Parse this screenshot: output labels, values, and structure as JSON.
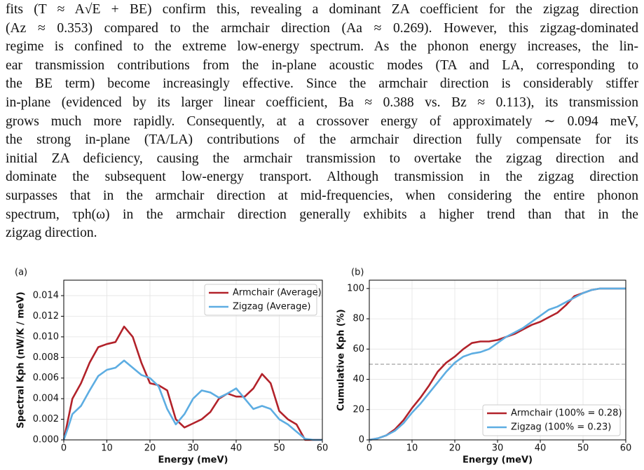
{
  "text": {
    "lines": [
      "fits (T ≈ A√E + BE) confirm this, revealing a dominant ZA coefficient for the zigzag direction",
      "(Az ≈ 0.353) compared to the armchair direction (Aa ≈ 0.269). However, this zigzag-dominated",
      "regime is confined to the extreme low-energy spectrum. As the phonon energy increases, the lin-",
      "ear transmission contributions from the in-plane acoustic modes (TA and LA, corresponding to",
      "the BE term) become increasingly effective. Since the armchair direction is considerably stiffer",
      "in-plane (evidenced by its larger linear coefficient, Ba ≈ 0.388 vs. Bz ≈ 0.113), its transmission",
      "grows much more rapidly. Consequently, at a crossover energy of approximately ∼ 0.094 meV,",
      "the strong in-plane (TA/LA) contributions of the armchair direction fully compensate for its",
      "initial ZA deficiency, causing the armchair transmission to overtake the zigzag direction and",
      "dominate the subsequent low-energy transport. Although transmission in the zigzag direction",
      "surpasses that in the armchair direction at mid-frequencies, when considering the entire phonon",
      "spectrum, τph(ω) in the armchair direction generally exhibits a higher trend than that in the",
      "zigzag direction."
    ]
  },
  "chart_data": [
    {
      "type": "line",
      "panel": "(a)",
      "xlabel": "Energy (meV)",
      "ylabel": "Spectral Kph (nW/K / meV)",
      "x": [
        0,
        1,
        2,
        4,
        6,
        8,
        10,
        12,
        14,
        16,
        18,
        20,
        22,
        24,
        26,
        28,
        30,
        32,
        34,
        36,
        38,
        40,
        42,
        44,
        46,
        48,
        50,
        52,
        54,
        56,
        58,
        60
      ],
      "series": [
        {
          "name": "Armchair (Average)",
          "color": "#b2222a",
          "values": [
            0,
            0.002,
            0.004,
            0.0055,
            0.0075,
            0.009,
            0.0093,
            0.0095,
            0.011,
            0.01,
            0.0075,
            0.0055,
            0.0053,
            0.0048,
            0.002,
            0.0012,
            0.0016,
            0.002,
            0.0027,
            0.004,
            0.0045,
            0.0042,
            0.0042,
            0.005,
            0.0064,
            0.0055,
            0.0028,
            0.002,
            0.0015,
            0,
            0,
            0
          ]
        },
        {
          "name": "Zigzag (Average)",
          "color": "#5dade2",
          "values": [
            0,
            0.0012,
            0.0025,
            0.0033,
            0.0048,
            0.0062,
            0.0068,
            0.007,
            0.0077,
            0.007,
            0.0063,
            0.006,
            0.0052,
            0.003,
            0.0015,
            0.0025,
            0.004,
            0.0048,
            0.0046,
            0.0041,
            0.0045,
            0.005,
            0.004,
            0.003,
            0.0033,
            0.003,
            0.002,
            0.0015,
            0.0008,
            0.0001,
            0,
            0
          ]
        }
      ],
      "xlim": [
        0,
        60
      ],
      "xticks": [
        0,
        10,
        20,
        30,
        40,
        50,
        60
      ],
      "ylim": [
        0,
        0.0155
      ],
      "yticks": [
        {
          "value": 0,
          "label": "0.000"
        },
        {
          "value": 0.002,
          "label": "0.002"
        },
        {
          "value": 0.004,
          "label": "0.004"
        },
        {
          "value": 0.006,
          "label": "0.006"
        },
        {
          "value": 0.008,
          "label": "0.008"
        },
        {
          "value": 0.01,
          "label": "0.010"
        },
        {
          "value": 0.012,
          "label": "0.012"
        },
        {
          "value": 0.014,
          "label": "0.014"
        }
      ],
      "grid": true,
      "legend": "upper-right"
    },
    {
      "type": "line",
      "panel": "(b)",
      "xlabel": "Energy (meV)",
      "ylabel": "Cumulative Kph (%)",
      "x": [
        0,
        2,
        4,
        6,
        8,
        10,
        12,
        14,
        16,
        18,
        20,
        22,
        24,
        26,
        28,
        30,
        32,
        34,
        36,
        38,
        40,
        42,
        44,
        46,
        48,
        50,
        52,
        54,
        56,
        58,
        60
      ],
      "series": [
        {
          "name": "Armchair (100% = 0.28)",
          "color": "#b2222a",
          "values": [
            0,
            1,
            3,
            7,
            13,
            21,
            28,
            36,
            45,
            51,
            55,
            60,
            64,
            65,
            65,
            66,
            68,
            70,
            73,
            76,
            78,
            81,
            84,
            89,
            95,
            97,
            99,
            100,
            100,
            100,
            100
          ]
        },
        {
          "name": "Zigzag (100% = 0.23)",
          "color": "#5dade2",
          "values": [
            0,
            1,
            3,
            6,
            11,
            18,
            24,
            31,
            38,
            45,
            51,
            55,
            57,
            58,
            60,
            64,
            68,
            71,
            74,
            78,
            82,
            86,
            88,
            91,
            94,
            97,
            99,
            100,
            100,
            100,
            100
          ]
        }
      ],
      "xlim": [
        0,
        60
      ],
      "xticks": [
        0,
        10,
        20,
        30,
        40,
        50,
        60
      ],
      "ylim": [
        0,
        105.5
      ],
      "yticks": [
        0,
        20,
        40,
        60,
        80,
        100
      ],
      "hline": 50,
      "grid": true,
      "legend": "lower-right"
    }
  ]
}
